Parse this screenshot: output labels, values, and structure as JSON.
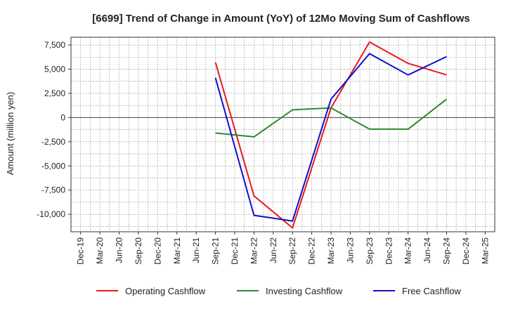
{
  "chart_data": {
    "type": "line",
    "title": "[6699]  Trend of Change in Amount (YoY) of 12Mo Moving Sum of Cashflows",
    "xlabel": "",
    "ylabel": "Amount (million yen)",
    "ylim": [
      -11800,
      8300
    ],
    "yticks": [
      7500,
      5000,
      2500,
      0,
      -2500,
      -5000,
      -7500,
      -10000
    ],
    "ytick_labels": [
      "7,500",
      "5,000",
      "2,500",
      "0",
      "-2,500",
      "-5,000",
      "-7,500",
      "-10,000"
    ],
    "categories": [
      "Dec-19",
      "Mar-20",
      "Jun-20",
      "Sep-20",
      "Dec-20",
      "Mar-21",
      "Jun-21",
      "Sep-21",
      "Dec-21",
      "Mar-22",
      "Jun-22",
      "Sep-22",
      "Dec-22",
      "Mar-23",
      "Jun-23",
      "Sep-23",
      "Dec-23",
      "Mar-24",
      "Jun-24",
      "Sep-24",
      "Dec-24",
      "Mar-25"
    ],
    "grid": true,
    "legend_position": "bottom",
    "series": [
      {
        "name": "Operating Cashflow",
        "color": "#e8191b",
        "values": [
          null,
          null,
          null,
          null,
          null,
          null,
          null,
          5700,
          null,
          -8100,
          null,
          -11400,
          null,
          1000,
          null,
          7800,
          null,
          5600,
          null,
          4400,
          null,
          null
        ]
      },
      {
        "name": "Investing Cashflow",
        "color": "#2e8b2e",
        "values": [
          null,
          null,
          null,
          null,
          null,
          null,
          null,
          -1600,
          null,
          -2000,
          null,
          800,
          null,
          1000,
          null,
          -1200,
          null,
          -1200,
          null,
          1900,
          null,
          null
        ]
      },
      {
        "name": "Free Cashflow",
        "color": "#1010cc",
        "values": [
          null,
          null,
          null,
          null,
          null,
          null,
          null,
          4100,
          null,
          -10100,
          null,
          -10700,
          null,
          1900,
          null,
          6600,
          null,
          4400,
          null,
          6300,
          null,
          null
        ]
      }
    ]
  }
}
